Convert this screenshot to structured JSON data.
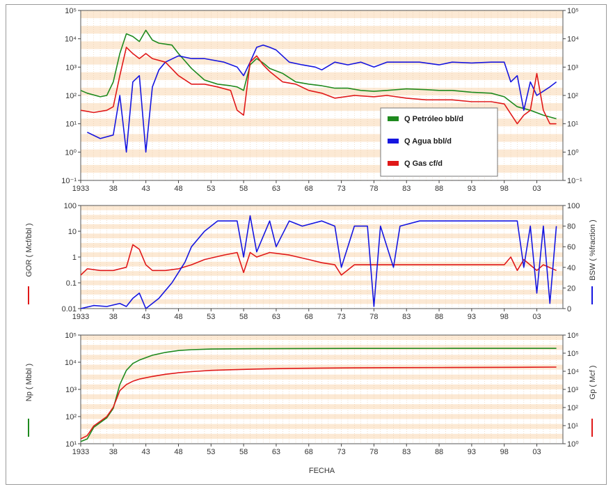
{
  "colors": {
    "oil": "#1e8a1e",
    "water": "#1515e0",
    "gas": "#e01818",
    "band": "#fce9d4",
    "grid": "#e6c7a4",
    "plot_border": "#555555"
  },
  "x_axis": {
    "xlabel": "FECHA",
    "ticks": [
      "1933",
      "38",
      "43",
      "48",
      "53",
      "58",
      "63",
      "68",
      "73",
      "78",
      "83",
      "88",
      "93",
      "98",
      "03"
    ],
    "xlim": [
      1933,
      2007
    ]
  },
  "chart_data": [
    {
      "type": "line",
      "panel": "top",
      "y_scale": "log",
      "ylim": [
        0.1,
        100000
      ],
      "y_ticks_left": [
        "10⁻¹",
        "10⁰",
        "10¹",
        "10²",
        "10³",
        "10⁴",
        "10⁵"
      ],
      "y_ticks_right": [
        "10⁻¹",
        "10⁰",
        "10¹",
        "10²",
        "10³",
        "10⁴",
        "10⁵"
      ],
      "legend_position": "lower-right",
      "series": [
        {
          "name": "Q Petróleo bbl/d",
          "color": "#1e8a1e",
          "x": [
            1933,
            1934,
            1936,
            1937,
            1938,
            1939,
            1940,
            1941,
            1942,
            1943,
            1944,
            1945,
            1946,
            1947,
            1948,
            1950,
            1952,
            1954,
            1956,
            1957,
            1958,
            1959,
            1960,
            1961,
            1962,
            1964,
            1966,
            1968,
            1970,
            1972,
            1974,
            1976,
            1978,
            1980,
            1983,
            1986,
            1988,
            1990,
            1993,
            1996,
            1998,
            2000,
            2002,
            2004,
            2006
          ],
          "y": [
            150,
            120,
            90,
            100,
            300,
            3000,
            15000,
            12000,
            8000,
            20000,
            9000,
            7000,
            6500,
            6000,
            3000,
            900,
            350,
            250,
            220,
            200,
            150,
            1200,
            2000,
            1400,
            900,
            600,
            300,
            250,
            220,
            180,
            180,
            150,
            140,
            150,
            170,
            160,
            150,
            150,
            130,
            120,
            90,
            40,
            30,
            20,
            15
          ]
        },
        {
          "name": "Q Agua bbl/d",
          "color": "#1515e0",
          "x": [
            1934,
            1936,
            1938,
            1939,
            1940,
            1941,
            1942,
            1943,
            1944,
            1945,
            1946,
            1948,
            1950,
            1952,
            1955,
            1957,
            1958,
            1959,
            1960,
            1961,
            1962,
            1963,
            1965,
            1967,
            1969,
            1970,
            1972,
            1974,
            1976,
            1978,
            1980,
            1982,
            1985,
            1988,
            1990,
            1993,
            1996,
            1998,
            1999,
            2000,
            2001,
            2002,
            2003,
            2005,
            2006
          ],
          "y": [
            5,
            3,
            4,
            100,
            1,
            300,
            500,
            1,
            200,
            800,
            1500,
            2500,
            2000,
            2000,
            1500,
            1000,
            500,
            1500,
            5000,
            6000,
            5000,
            4000,
            1500,
            1200,
            1000,
            800,
            1500,
            1200,
            1500,
            1000,
            1500,
            1500,
            1500,
            1200,
            1500,
            1400,
            1500,
            1500,
            300,
            500,
            30,
            300,
            100,
            200,
            300
          ]
        },
        {
          "name": "Q Gas cf/d",
          "color": "#e01818",
          "x": [
            1933,
            1935,
            1937,
            1938,
            1939,
            1940,
            1941,
            1942,
            1943,
            1944,
            1946,
            1948,
            1950,
            1952,
            1954,
            1956,
            1957,
            1958,
            1959,
            1960,
            1961,
            1962,
            1964,
            1966,
            1968,
            1970,
            1972,
            1975,
            1978,
            1980,
            1983,
            1986,
            1990,
            1993,
            1996,
            1998,
            2000,
            2001,
            2002,
            2003,
            2004,
            2005,
            2006
          ],
          "y": [
            30,
            25,
            30,
            40,
            500,
            5000,
            3000,
            2000,
            3000,
            2000,
            1500,
            500,
            250,
            250,
            200,
            150,
            30,
            20,
            1500,
            2500,
            1200,
            700,
            300,
            250,
            150,
            120,
            80,
            100,
            90,
            100,
            80,
            70,
            70,
            60,
            60,
            50,
            10,
            20,
            30,
            600,
            30,
            10,
            10
          ]
        }
      ]
    },
    {
      "type": "line",
      "panel": "middle",
      "ylabel_left": "GOR ( Mcf/bbl )",
      "ylabel_right": "BSW ( %fraction )",
      "y_left_scale": "log",
      "ylim_left": [
        0.01,
        100
      ],
      "y_ticks_left": [
        "0.01",
        "0.1",
        "1",
        "10",
        "100"
      ],
      "ylim_right": [
        0,
        100
      ],
      "y_ticks_right": [
        "0",
        "20",
        "40",
        "60",
        "80",
        "100"
      ],
      "series": [
        {
          "name": "GOR",
          "color": "#e01818",
          "axis": "left",
          "x": [
            1933,
            1934,
            1936,
            1938,
            1940,
            1941,
            1942,
            1943,
            1944,
            1946,
            1948,
            1950,
            1952,
            1955,
            1957,
            1958,
            1959,
            1960,
            1962,
            1965,
            1968,
            1970,
            1972,
            1973,
            1975,
            1978,
            1980,
            1983,
            1986,
            1990,
            1993,
            1996,
            1998,
            1999,
            2000,
            2001,
            2003,
            2004,
            2006
          ],
          "y": [
            0.2,
            0.35,
            0.3,
            0.3,
            0.4,
            3,
            2,
            0.5,
            0.3,
            0.3,
            0.35,
            0.5,
            0.8,
            1.2,
            1.5,
            0.25,
            1.5,
            1,
            1.5,
            1.2,
            0.8,
            0.6,
            0.5,
            0.2,
            0.5,
            0.5,
            0.5,
            0.5,
            0.5,
            0.5,
            0.5,
            0.5,
            0.5,
            1,
            0.3,
            0.8,
            0.3,
            0.5,
            0.3
          ]
        },
        {
          "name": "BSW",
          "color": "#1515e0",
          "axis": "right",
          "x": [
            1933,
            1935,
            1937,
            1939,
            1940,
            1941,
            1942,
            1943,
            1945,
            1947,
            1949,
            1950,
            1952,
            1954,
            1957,
            1958,
            1959,
            1960,
            1962,
            1963,
            1965,
            1967,
            1970,
            1972,
            1973,
            1975,
            1977,
            1978,
            1979,
            1981,
            1982,
            1985,
            1988,
            1990,
            1993,
            1996,
            1998,
            2000,
            2001,
            2002,
            2003,
            2004,
            2005,
            2006
          ],
          "y": [
            0,
            3,
            2,
            5,
            2,
            10,
            15,
            0,
            10,
            25,
            45,
            60,
            75,
            85,
            85,
            50,
            90,
            55,
            85,
            60,
            85,
            80,
            85,
            80,
            40,
            80,
            80,
            2,
            80,
            40,
            80,
            85,
            85,
            85,
            85,
            85,
            85,
            85,
            40,
            80,
            15,
            80,
            5,
            80
          ]
        }
      ]
    },
    {
      "type": "line",
      "panel": "bottom",
      "ylabel_left": "Np ( Mbbl )",
      "ylabel_right": "Gp ( Mcf )",
      "y_left_scale": "log",
      "ylim_left": [
        10,
        100000
      ],
      "y_ticks_left": [
        "10¹",
        "10²",
        "10³",
        "10⁴",
        "10⁵"
      ],
      "y_ticks_right": [
        "10⁰",
        "10¹",
        "10²",
        "10³",
        "10⁴",
        "10⁵",
        "10⁶"
      ],
      "series": [
        {
          "name": "Np",
          "color": "#1e8a1e",
          "axis": "left",
          "x": [
            1933,
            1934,
            1935,
            1937,
            1938,
            1939,
            1940,
            1941,
            1942,
            1944,
            1946,
            1948,
            1950,
            1953,
            1956,
            1960,
            1965,
            1970,
            1975,
            1980,
            1990,
            2000,
            2006
          ],
          "y": [
            12,
            15,
            40,
            90,
            200,
            1500,
            5000,
            9000,
            12000,
            18000,
            23000,
            27000,
            29000,
            30500,
            31000,
            31500,
            31800,
            32000,
            32100,
            32200,
            32300,
            32300,
            32300
          ]
        },
        {
          "name": "Gp",
          "color": "#e01818",
          "axis": "left",
          "x": [
            1933,
            1934,
            1935,
            1937,
            1938,
            1939,
            1940,
            1941,
            1942,
            1944,
            1946,
            1948,
            1950,
            1953,
            1956,
            1960,
            1965,
            1970,
            1975,
            1980,
            1990,
            2000,
            2006
          ],
          "y": [
            15,
            20,
            45,
            100,
            220,
            900,
            1500,
            2000,
            2400,
            3000,
            3600,
            4100,
            4500,
            5000,
            5300,
            5600,
            5900,
            6100,
            6200,
            6300,
            6400,
            6500,
            6600
          ]
        }
      ]
    }
  ]
}
